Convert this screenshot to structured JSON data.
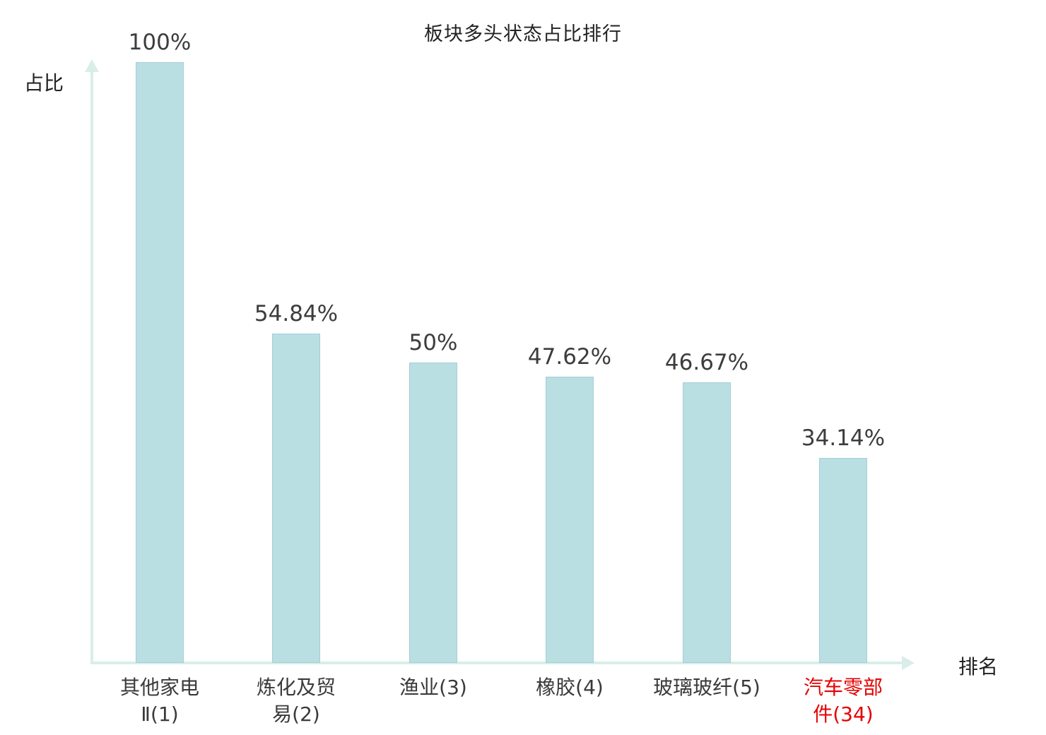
{
  "chart_data": {
    "type": "bar",
    "title": "板块多头状态占比排行",
    "xlabel": "排名",
    "ylabel": "占比",
    "categories": [
      "其他家电\nⅡ(1)",
      "炼化及贸\n易(2)",
      "渔业(3)",
      "橡胶(4)",
      "玻璃玻纤(5)",
      "汽车零部\n件(34)"
    ],
    "values": [
      100,
      54.84,
      50,
      47.62,
      46.67,
      34.14
    ],
    "value_labels": [
      "100%",
      "54.84%",
      "50%",
      "47.62%",
      "46.67%",
      "34.14%"
    ],
    "category_colors": [
      "#3a3a3a",
      "#3a3a3a",
      "#3a3a3a",
      "#3a3a3a",
      "#3a3a3a",
      "#e60000"
    ],
    "ylim": [
      0,
      100
    ],
    "grid": false,
    "legend_position": "none",
    "colors": {
      "bar_fill": "#b9dfe3",
      "bar_border": "#a3ced5",
      "axis": "#d9eee8",
      "value_label": "#3d3d3d"
    }
  }
}
